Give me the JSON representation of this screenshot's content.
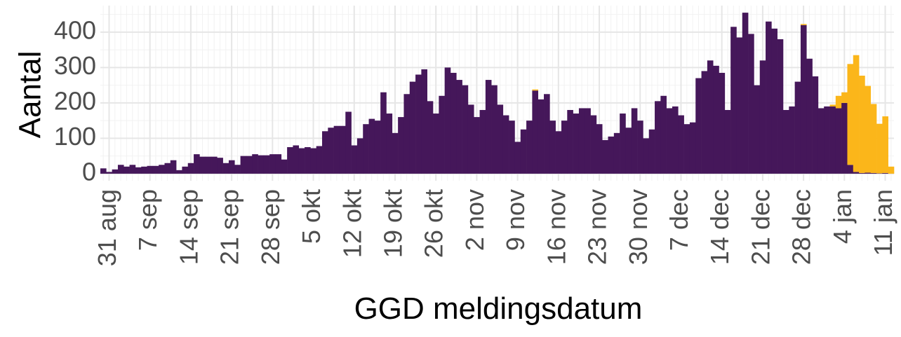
{
  "chart_data": {
    "type": "stacked_bar",
    "y_label": "Aantal",
    "x_label": "GGD meldingsdatum",
    "categories": [
      null,
      "31 aug",
      null,
      null,
      null,
      null,
      null,
      null,
      "7 sep",
      null,
      null,
      null,
      null,
      null,
      null,
      "14 sep",
      null,
      null,
      null,
      null,
      null,
      null,
      "21 sep",
      null,
      null,
      null,
      null,
      null,
      null,
      "28 sep",
      null,
      null,
      null,
      null,
      null,
      null,
      "5 okt",
      null,
      null,
      null,
      null,
      null,
      null,
      "12 okt",
      null,
      null,
      null,
      null,
      null,
      null,
      "19 okt",
      null,
      null,
      null,
      null,
      null,
      null,
      "26 okt",
      null,
      null,
      null,
      null,
      null,
      null,
      "2 nov",
      null,
      null,
      null,
      null,
      null,
      null,
      "9 nov",
      null,
      null,
      null,
      null,
      null,
      null,
      "16 nov",
      null,
      null,
      null,
      null,
      null,
      null,
      "23 nov",
      null,
      null,
      null,
      null,
      null,
      null,
      "30 nov",
      null,
      null,
      null,
      null,
      null,
      null,
      "7 dec",
      null,
      null,
      null,
      null,
      null,
      null,
      "14 dec",
      null,
      null,
      null,
      null,
      null,
      null,
      "21 dec",
      null,
      null,
      null,
      null,
      null,
      null,
      "28 dec",
      null,
      null,
      null,
      null,
      null,
      null,
      "4 jan",
      null,
      null,
      null,
      null,
      null,
      null,
      "11 jan",
      null
    ],
    "series": [
      {
        "color": "#45175a",
        "values": [
          15,
          5,
          12,
          25,
          20,
          25,
          18,
          20,
          22,
          22,
          25,
          30,
          38,
          10,
          20,
          30,
          55,
          48,
          48,
          48,
          45,
          30,
          38,
          25,
          50,
          50,
          55,
          52,
          52,
          55,
          55,
          40,
          75,
          80,
          72,
          75,
          72,
          78,
          120,
          130,
          135,
          135,
          175,
          80,
          100,
          140,
          155,
          150,
          230,
          170,
          115,
          160,
          225,
          260,
          280,
          295,
          205,
          170,
          220,
          300,
          285,
          265,
          250,
          195,
          160,
          180,
          265,
          250,
          195,
          165,
          150,
          90,
          125,
          150,
          235,
          210,
          225,
          150,
          120,
          150,
          180,
          170,
          185,
          185,
          165,
          140,
          95,
          105,
          115,
          170,
          130,
          185,
          150,
          100,
          125,
          205,
          220,
          185,
          190,
          165,
          140,
          145,
          270,
          290,
          320,
          305,
          285,
          180,
          415,
          385,
          455,
          395,
          250,
          320,
          430,
          410,
          380,
          180,
          190,
          260,
          420,
          325,
          275,
          185,
          190,
          190,
          185,
          200,
          25,
          5,
          2,
          3,
          2,
          1,
          2,
          0
        ]
      },
      {
        "color": "#fbb61a",
        "values": [
          0,
          0,
          0,
          0,
          0,
          0,
          0,
          0,
          0,
          0,
          0,
          0,
          0,
          0,
          0,
          0,
          0,
          0,
          0,
          0,
          0,
          0,
          0,
          0,
          0,
          0,
          0,
          0,
          0,
          0,
          0,
          0,
          0,
          0,
          0,
          0,
          0,
          0,
          0,
          0,
          0,
          0,
          0,
          0,
          0,
          0,
          0,
          0,
          0,
          0,
          0,
          0,
          0,
          0,
          0,
          0,
          0,
          0,
          0,
          0,
          0,
          0,
          0,
          0,
          0,
          0,
          0,
          0,
          0,
          0,
          0,
          0,
          0,
          0,
          3,
          0,
          0,
          0,
          0,
          0,
          0,
          0,
          0,
          0,
          0,
          0,
          0,
          0,
          0,
          0,
          0,
          0,
          0,
          0,
          0,
          0,
          0,
          0,
          0,
          0,
          0,
          0,
          0,
          0,
          0,
          0,
          0,
          0,
          0,
          0,
          0,
          0,
          0,
          0,
          0,
          0,
          0,
          0,
          0,
          0,
          3,
          0,
          0,
          0,
          0,
          5,
          35,
          30,
          285,
          330,
          275,
          245,
          195,
          140,
          160,
          20
        ]
      }
    ],
    "ylim": [
      -20,
      475
    ],
    "yticks": [
      0,
      100,
      200,
      300,
      400
    ],
    "grid": true
  }
}
